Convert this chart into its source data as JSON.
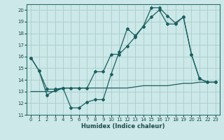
{
  "title": "",
  "xlabel": "Humidex (Indice chaleur)",
  "xlim": [
    -0.5,
    23.5
  ],
  "ylim": [
    11,
    20.5
  ],
  "yticks": [
    11,
    12,
    13,
    14,
    15,
    16,
    17,
    18,
    19,
    20
  ],
  "xticks": [
    0,
    1,
    2,
    3,
    4,
    5,
    6,
    7,
    8,
    9,
    10,
    11,
    12,
    13,
    14,
    15,
    16,
    17,
    18,
    19,
    20,
    21,
    22,
    23
  ],
  "bg_color": "#cde8e8",
  "grid_color": "#a8cccc",
  "line_color": "#1a6060",
  "series1_x": [
    0,
    1,
    2,
    3,
    4,
    5,
    6,
    7,
    8,
    9,
    10,
    11,
    12,
    13,
    14,
    15,
    16,
    17,
    18,
    19,
    20,
    21,
    22,
    23
  ],
  "series1_y": [
    15.9,
    14.8,
    12.7,
    13.1,
    13.3,
    11.6,
    11.6,
    12.1,
    12.3,
    12.3,
    14.5,
    16.4,
    18.4,
    17.8,
    18.6,
    20.2,
    20.2,
    19.5,
    18.9,
    19.4,
    16.2,
    14.1,
    13.8,
    13.8
  ],
  "series2_x": [
    0,
    1,
    2,
    3,
    4,
    5,
    6,
    7,
    8,
    9,
    10,
    11,
    12,
    13,
    14,
    15,
    16,
    17,
    18,
    19,
    20,
    21,
    22,
    23
  ],
  "series2_y": [
    15.9,
    14.8,
    13.2,
    13.2,
    13.3,
    13.3,
    13.3,
    13.3,
    14.7,
    14.7,
    16.2,
    16.2,
    16.9,
    17.7,
    18.6,
    19.4,
    20.0,
    18.8,
    18.8,
    19.4,
    16.2,
    14.1,
    13.8,
    13.8
  ],
  "series3_x": [
    0,
    1,
    2,
    3,
    4,
    5,
    6,
    7,
    8,
    9,
    10,
    11,
    12,
    13,
    14,
    15,
    16,
    17,
    18,
    19,
    20,
    21,
    22,
    23
  ],
  "series3_y": [
    13.0,
    13.0,
    13.0,
    13.0,
    13.3,
    13.3,
    13.3,
    13.3,
    13.3,
    13.3,
    13.3,
    13.3,
    13.3,
    13.4,
    13.5,
    13.5,
    13.5,
    13.5,
    13.6,
    13.7,
    13.7,
    13.8,
    13.8,
    13.8
  ]
}
